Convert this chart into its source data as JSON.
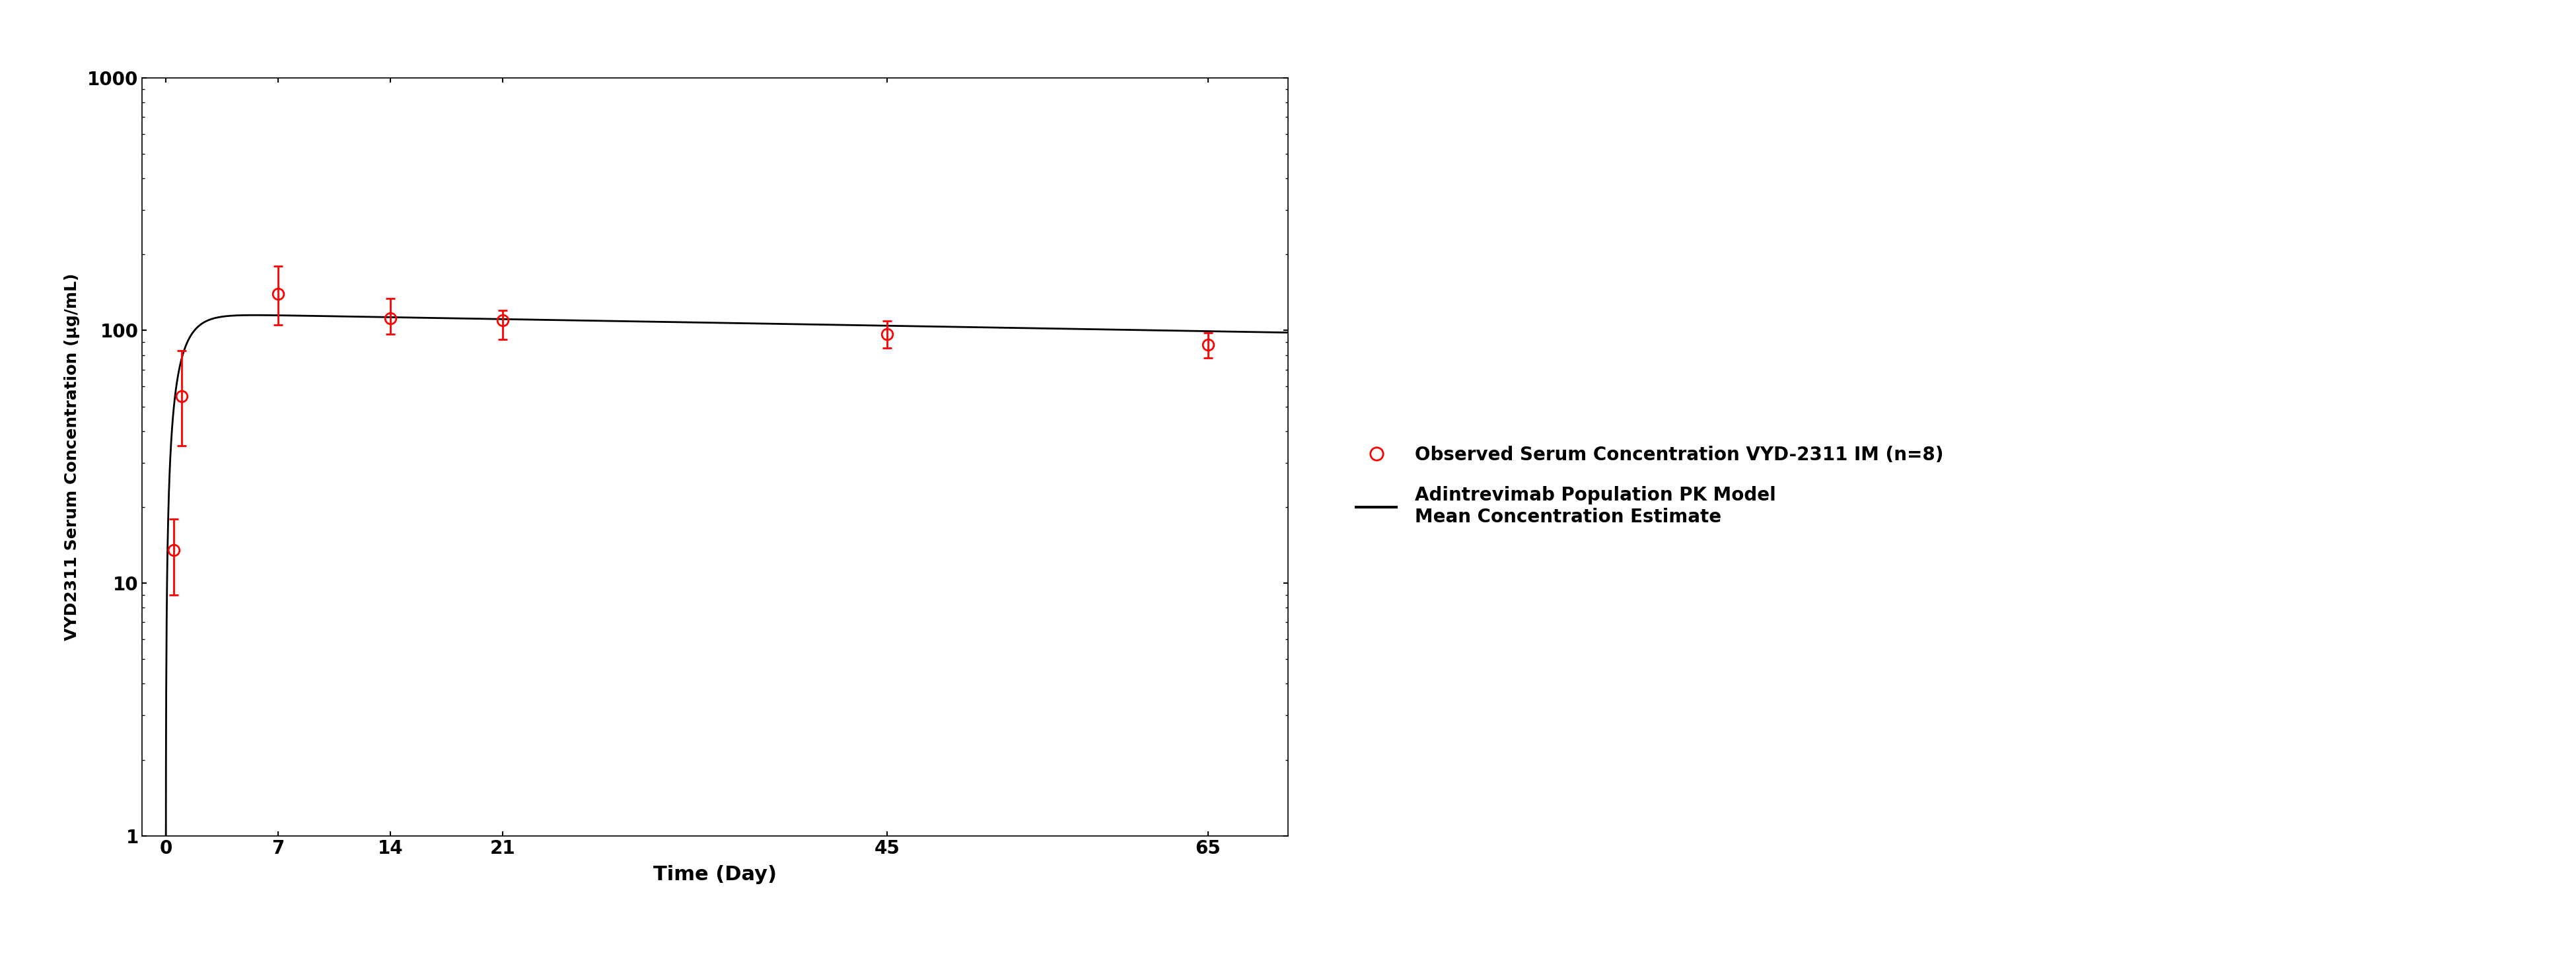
{
  "obs_x": [
    0.5,
    1,
    7,
    14,
    21,
    45,
    65
  ],
  "obs_y": [
    13.5,
    55,
    140,
    112,
    110,
    97,
    88
  ],
  "obs_yerr_low": [
    4.5,
    20,
    35,
    15,
    18,
    12,
    10
  ],
  "obs_yerr_high": [
    4.5,
    28,
    40,
    22,
    10,
    12,
    10
  ],
  "obs_color": "#FF0000",
  "obs_label": "Observed Serum Concentration VYD-2311 IM (n=8)",
  "line_label_1": "Adintrevimab Population PK Model",
  "line_label_2": "Mean Concentration Estimate",
  "line_color": "#000000",
  "ylabel": "VYD2311 Serum Concentration (µg/mL)",
  "xlabel": "Time (Day)",
  "xlim": [
    -1.5,
    70
  ],
  "ylim_log": [
    1,
    1000
  ],
  "xticks": [
    0,
    7,
    14,
    21,
    45,
    65
  ],
  "background_color": "#FFFFFF",
  "ka": 1.1,
  "ke": 0.0025,
  "model_peak_val": 115,
  "model_end_day": 70
}
